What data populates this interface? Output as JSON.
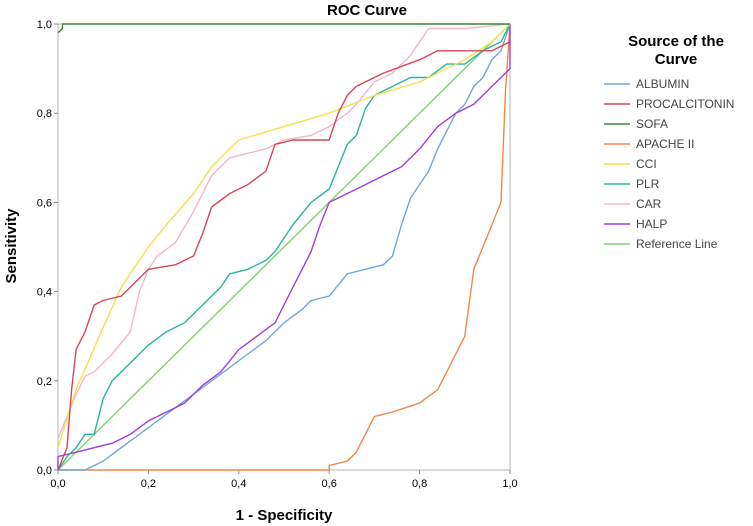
{
  "chart_data": {
    "type": "line",
    "title": "ROC Curve",
    "xlabel": "1 - Specificity",
    "ylabel": "Sensitivity",
    "xlim": [
      0,
      1
    ],
    "ylim": [
      0,
      1
    ],
    "x_ticks": [
      "0,0",
      "0,2",
      "0,4",
      "0,6",
      "0,8",
      "1,0"
    ],
    "y_ticks": [
      "0,0",
      "0,2",
      "0,4",
      "0,6",
      "0,8",
      "1,0"
    ],
    "legend_title_lines": [
      "Source of the",
      "Curve"
    ],
    "legend_position": "right",
    "series": [
      {
        "name": "ALBUMIN",
        "color": "#6fa8dc",
        "points": [
          [
            0,
            0
          ],
          [
            0.06,
            0
          ],
          [
            0.08,
            0.01
          ],
          [
            0.1,
            0.02
          ],
          [
            0.14,
            0.05
          ],
          [
            0.18,
            0.08
          ],
          [
            0.22,
            0.11
          ],
          [
            0.26,
            0.14
          ],
          [
            0.3,
            0.17
          ],
          [
            0.34,
            0.2
          ],
          [
            0.38,
            0.23
          ],
          [
            0.42,
            0.26
          ],
          [
            0.46,
            0.29
          ],
          [
            0.5,
            0.33
          ],
          [
            0.54,
            0.36
          ],
          [
            0.56,
            0.38
          ],
          [
            0.6,
            0.39
          ],
          [
            0.64,
            0.44
          ],
          [
            0.68,
            0.45
          ],
          [
            0.72,
            0.46
          ],
          [
            0.74,
            0.48
          ],
          [
            0.76,
            0.55
          ],
          [
            0.78,
            0.61
          ],
          [
            0.82,
            0.67
          ],
          [
            0.84,
            0.72
          ],
          [
            0.86,
            0.76
          ],
          [
            0.88,
            0.8
          ],
          [
            0.9,
            0.82
          ],
          [
            0.92,
            0.86
          ],
          [
            0.94,
            0.88
          ],
          [
            0.96,
            0.92
          ],
          [
            0.98,
            0.94
          ],
          [
            1.0,
            1.0
          ]
        ]
      },
      {
        "name": "PROCALCITONIN",
        "color": "#d6455a",
        "points": [
          [
            0,
            0
          ],
          [
            0.02,
            0.05
          ],
          [
            0.03,
            0.18
          ],
          [
            0.04,
            0.27
          ],
          [
            0.06,
            0.31
          ],
          [
            0.08,
            0.37
          ],
          [
            0.1,
            0.38
          ],
          [
            0.14,
            0.39
          ],
          [
            0.18,
            0.43
          ],
          [
            0.2,
            0.45
          ],
          [
            0.26,
            0.46
          ],
          [
            0.3,
            0.48
          ],
          [
            0.32,
            0.53
          ],
          [
            0.34,
            0.59
          ],
          [
            0.38,
            0.62
          ],
          [
            0.42,
            0.64
          ],
          [
            0.46,
            0.67
          ],
          [
            0.48,
            0.73
          ],
          [
            0.52,
            0.74
          ],
          [
            0.6,
            0.74
          ],
          [
            0.62,
            0.8
          ],
          [
            0.64,
            0.84
          ],
          [
            0.66,
            0.86
          ],
          [
            0.72,
            0.89
          ],
          [
            0.8,
            0.92
          ],
          [
            0.84,
            0.94
          ],
          [
            0.92,
            0.94
          ],
          [
            0.96,
            0.94
          ],
          [
            1.0,
            0.96
          ]
        ]
      },
      {
        "name": "SOFA",
        "color": "#3a8a3a",
        "points": [
          [
            0,
            0.98
          ],
          [
            0.01,
            0.99
          ],
          [
            0.01,
            1.0
          ],
          [
            1.0,
            1.0
          ]
        ]
      },
      {
        "name": "APACHE II",
        "color": "#f0874a",
        "points": [
          [
            0,
            0
          ],
          [
            0.6,
            0
          ],
          [
            0.6,
            0.01
          ],
          [
            0.64,
            0.02
          ],
          [
            0.66,
            0.04
          ],
          [
            0.7,
            0.12
          ],
          [
            0.74,
            0.13
          ],
          [
            0.8,
            0.15
          ],
          [
            0.84,
            0.18
          ],
          [
            0.88,
            0.26
          ],
          [
            0.9,
            0.3
          ],
          [
            0.92,
            0.45
          ],
          [
            0.94,
            0.5
          ],
          [
            0.96,
            0.55
          ],
          [
            0.98,
            0.6
          ],
          [
            0.99,
            0.85
          ],
          [
            1.0,
            1.0
          ]
        ]
      },
      {
        "name": "CCI",
        "color": "#f2e24a",
        "points": [
          [
            0,
            0.05
          ],
          [
            0.04,
            0.18
          ],
          [
            0.1,
            0.32
          ],
          [
            0.14,
            0.41
          ],
          [
            0.2,
            0.5
          ],
          [
            0.24,
            0.55
          ],
          [
            0.3,
            0.62
          ],
          [
            0.34,
            0.68
          ],
          [
            0.4,
            0.74
          ],
          [
            0.5,
            0.77
          ],
          [
            0.6,
            0.8
          ],
          [
            0.7,
            0.84
          ],
          [
            0.8,
            0.87
          ],
          [
            0.9,
            0.92
          ],
          [
            0.96,
            0.96
          ],
          [
            1.0,
            1.0
          ]
        ]
      },
      {
        "name": "PLR",
        "color": "#2bb3a2",
        "points": [
          [
            0,
            0
          ],
          [
            0.02,
            0.03
          ],
          [
            0.04,
            0.05
          ],
          [
            0.06,
            0.08
          ],
          [
            0.08,
            0.08
          ],
          [
            0.1,
            0.16
          ],
          [
            0.12,
            0.2
          ],
          [
            0.16,
            0.24
          ],
          [
            0.2,
            0.28
          ],
          [
            0.24,
            0.31
          ],
          [
            0.28,
            0.33
          ],
          [
            0.32,
            0.37
          ],
          [
            0.36,
            0.41
          ],
          [
            0.38,
            0.44
          ],
          [
            0.42,
            0.45
          ],
          [
            0.46,
            0.47
          ],
          [
            0.48,
            0.49
          ],
          [
            0.52,
            0.55
          ],
          [
            0.56,
            0.6
          ],
          [
            0.6,
            0.63
          ],
          [
            0.62,
            0.68
          ],
          [
            0.64,
            0.73
          ],
          [
            0.66,
            0.75
          ],
          [
            0.68,
            0.81
          ],
          [
            0.7,
            0.84
          ],
          [
            0.74,
            0.86
          ],
          [
            0.78,
            0.88
          ],
          [
            0.82,
            0.88
          ],
          [
            0.86,
            0.91
          ],
          [
            0.9,
            0.91
          ],
          [
            0.94,
            0.94
          ],
          [
            0.98,
            0.96
          ],
          [
            1.0,
            1.0
          ]
        ]
      },
      {
        "name": "CAR",
        "color": "#f4b6cf",
        "points": [
          [
            0,
            0.07
          ],
          [
            0.02,
            0.12
          ],
          [
            0.04,
            0.17
          ],
          [
            0.06,
            0.21
          ],
          [
            0.08,
            0.22
          ],
          [
            0.12,
            0.26
          ],
          [
            0.16,
            0.31
          ],
          [
            0.18,
            0.4
          ],
          [
            0.2,
            0.45
          ],
          [
            0.22,
            0.48
          ],
          [
            0.26,
            0.51
          ],
          [
            0.3,
            0.58
          ],
          [
            0.34,
            0.66
          ],
          [
            0.38,
            0.7
          ],
          [
            0.42,
            0.71
          ],
          [
            0.46,
            0.72
          ],
          [
            0.5,
            0.74
          ],
          [
            0.56,
            0.75
          ],
          [
            0.6,
            0.77
          ],
          [
            0.64,
            0.8
          ],
          [
            0.66,
            0.82
          ],
          [
            0.7,
            0.87
          ],
          [
            0.74,
            0.89
          ],
          [
            0.78,
            0.93
          ],
          [
            0.8,
            0.96
          ],
          [
            0.82,
            0.99
          ],
          [
            0.9,
            0.99
          ],
          [
            1.0,
            1.0
          ]
        ]
      },
      {
        "name": "HALP",
        "color": "#a33ce0",
        "points": [
          [
            0,
            0
          ],
          [
            0,
            0.03
          ],
          [
            0.04,
            0.04
          ],
          [
            0.08,
            0.05
          ],
          [
            0.12,
            0.06
          ],
          [
            0.16,
            0.08
          ],
          [
            0.2,
            0.11
          ],
          [
            0.24,
            0.13
          ],
          [
            0.28,
            0.15
          ],
          [
            0.32,
            0.19
          ],
          [
            0.36,
            0.22
          ],
          [
            0.4,
            0.27
          ],
          [
            0.44,
            0.3
          ],
          [
            0.48,
            0.33
          ],
          [
            0.52,
            0.41
          ],
          [
            0.54,
            0.45
          ],
          [
            0.56,
            0.49
          ],
          [
            0.58,
            0.55
          ],
          [
            0.6,
            0.6
          ],
          [
            0.64,
            0.62
          ],
          [
            0.68,
            0.64
          ],
          [
            0.72,
            0.66
          ],
          [
            0.76,
            0.68
          ],
          [
            0.8,
            0.72
          ],
          [
            0.84,
            0.77
          ],
          [
            0.88,
            0.8
          ],
          [
            0.92,
            0.82
          ],
          [
            0.96,
            0.86
          ],
          [
            1.0,
            0.9
          ],
          [
            1.0,
            1.0
          ]
        ]
      },
      {
        "name": "Reference Line",
        "color": "#7fd36b",
        "points": [
          [
            0,
            0
          ],
          [
            1,
            1
          ]
        ]
      }
    ]
  }
}
